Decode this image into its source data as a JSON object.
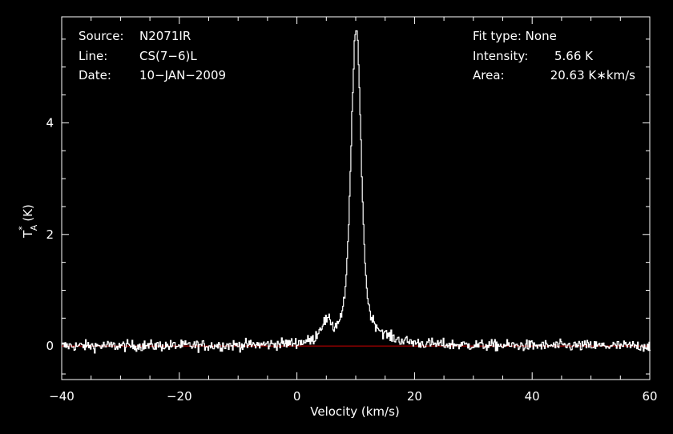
{
  "info": {
    "source_label": "Source:",
    "source_value": "N2071IR",
    "line_label": "Line:",
    "line_value": "CS(7−6)L",
    "date_label": "Date:",
    "date_value": "10−JAN−2009",
    "fit_label": "Fit type: None",
    "intensity_label": "Intensity:",
    "intensity_value": "5.66 K",
    "area_label": "Area:",
    "area_value": "20.63 K∗km/s"
  },
  "chart_data": {
    "type": "line",
    "title": "",
    "xlabel": "Velocity (km/s)",
    "ylabel_main": "T",
    "ylabel_sub": "A",
    "ylabel_sup": "*",
    "ylabel_unit": "(K)",
    "xlim": [
      -40,
      60
    ],
    "ylim": [
      -0.6,
      5.9
    ],
    "x_ticks": [
      -40,
      -20,
      0,
      20,
      40,
      60
    ],
    "x_tick_labels": [
      "−40",
      "−20",
      "0",
      "20",
      "40",
      "60"
    ],
    "y_ticks": [
      0,
      2,
      4
    ],
    "y_tick_labels": [
      "0",
      "2",
      "4"
    ],
    "grid": false,
    "series": [
      {
        "color": "#ffffff",
        "profile": {
          "v_start": -40,
          "v_end": 60,
          "points": 720,
          "peak_velocity": 10.0,
          "peak_intensity": 5.66,
          "noise_rms": 0.07
        }
      },
      {
        "color": "#cc0000",
        "x": [
          -40,
          60
        ],
        "y": [
          0,
          0
        ]
      }
    ]
  }
}
